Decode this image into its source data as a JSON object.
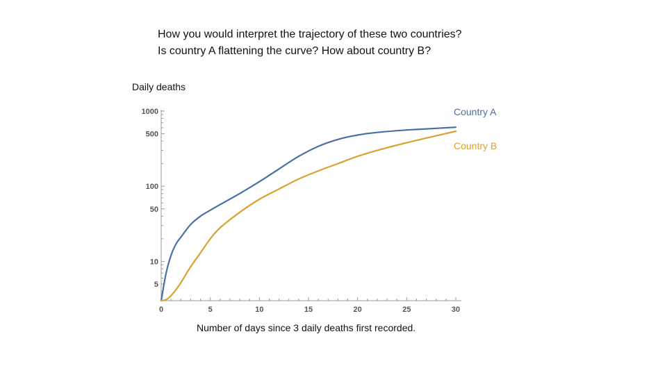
{
  "slide": {
    "question_line1": "How you would interpret the trajectory of these two countries?",
    "question_line2": "Is country A flattening the curve? How about country B?"
  },
  "chart_data": {
    "type": "line",
    "ylabel": "Daily deaths",
    "xlabel": "Number of days since 3 daily deaths first recorded.",
    "y_scale": "log",
    "xlim": [
      0,
      30
    ],
    "ylim": [
      3,
      1000
    ],
    "x_ticks": [
      "0",
      "5",
      "10",
      "15",
      "20",
      "25",
      "30"
    ],
    "y_ticks": [
      "1000",
      "500",
      "100",
      "50",
      "10",
      "5"
    ],
    "series": [
      {
        "name": "Country A",
        "color": "#4a6fa5",
        "x": [
          0,
          0.5,
          1,
          1.5,
          2,
          3,
          4,
          5,
          6,
          8,
          10,
          12,
          14,
          16,
          18,
          20,
          22,
          25,
          28,
          30
        ],
        "y": [
          3,
          7,
          12,
          17,
          21,
          31,
          40,
          48,
          57,
          80,
          115,
          170,
          250,
          340,
          420,
          480,
          520,
          560,
          590,
          610
        ]
      },
      {
        "name": "Country B",
        "color": "#d9a233",
        "x": [
          0,
          0.5,
          1,
          1.5,
          2,
          3,
          4,
          5,
          6,
          8,
          10,
          12,
          14,
          16,
          18,
          20,
          22,
          25,
          28,
          30
        ],
        "y": [
          3,
          3.1,
          3.5,
          4.2,
          5.2,
          8.5,
          13,
          20,
          28,
          45,
          67,
          92,
          125,
          160,
          200,
          250,
          300,
          380,
          470,
          540
        ]
      }
    ]
  }
}
